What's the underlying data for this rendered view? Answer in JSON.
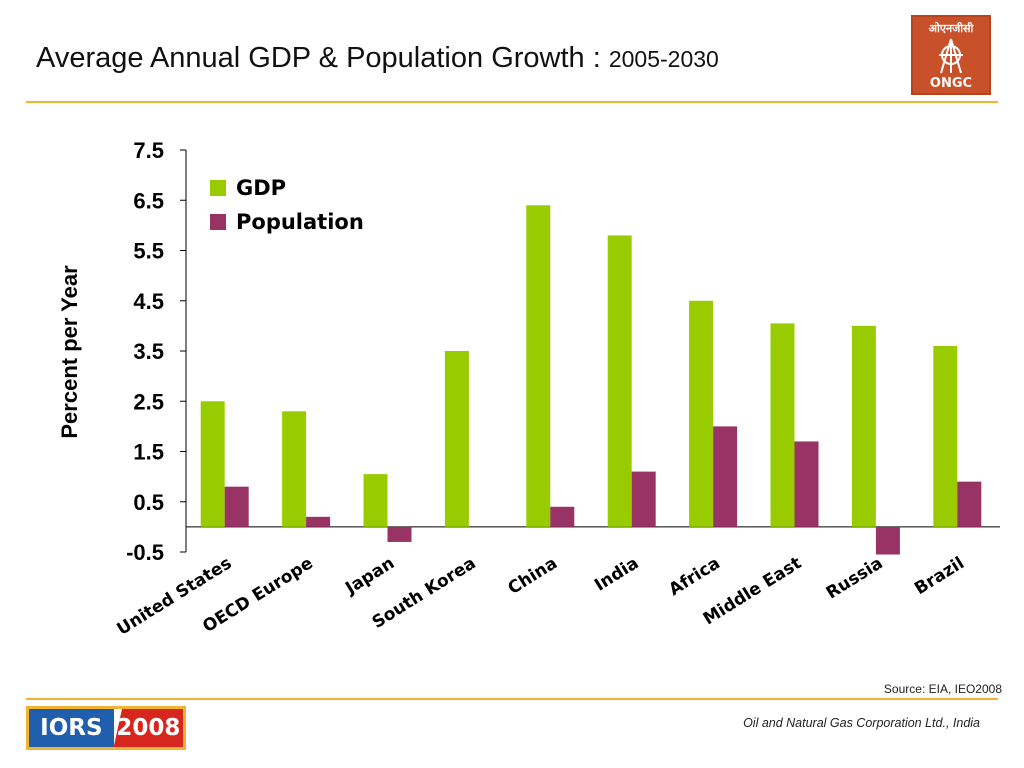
{
  "header": {
    "title": "Average Annual GDP & Population Growth :",
    "title_years": "2005-2030",
    "logo_text": "ओएनजीसी",
    "logo_abbrev": "ONGC"
  },
  "footer": {
    "source": "Source:  EIA, IEO2008",
    "organization": "Oil and Natural Gas Corporation Ltd., India",
    "badge_left": "IORS",
    "badge_right": "2008"
  },
  "colors": {
    "gdp": "#99cc00",
    "population": "#993366",
    "accent_rule": "#f2b233"
  },
  "chart_data": {
    "type": "bar",
    "title": "",
    "xlabel": "",
    "ylabel": "Percent per Year",
    "ylim": [
      -0.5,
      7.5
    ],
    "yticks": [
      "7.5",
      "6.5",
      "5.5",
      "4.5",
      "3.5",
      "2.5",
      "1.5",
      "0.5",
      "-0.5"
    ],
    "ytick_values": [
      7.5,
      6.5,
      5.5,
      4.5,
      3.5,
      2.5,
      1.5,
      0.5,
      -0.5
    ],
    "legend_position": "top-left",
    "grid": false,
    "categories": [
      "United States",
      "OECD Europe",
      "Japan",
      "South Korea",
      "China",
      "India",
      "Africa",
      "Middle East",
      "Russia",
      "Brazil"
    ],
    "series": [
      {
        "name": "GDP",
        "values": [
          2.5,
          2.3,
          1.05,
          3.5,
          6.4,
          5.8,
          4.5,
          4.05,
          4.0,
          3.6
        ]
      },
      {
        "name": "Population",
        "values": [
          0.8,
          0.2,
          -0.3,
          0.0,
          0.4,
          1.1,
          2.0,
          1.7,
          -0.55,
          0.9
        ]
      }
    ]
  }
}
